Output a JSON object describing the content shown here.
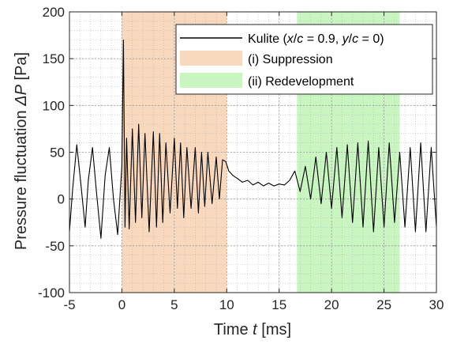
{
  "chart_data": {
    "type": "line",
    "xlabel_prefix": "Time ",
    "xlabel_var": "t",
    "xlabel_unit": " [ms]",
    "ylabel_prefix": "Pressure fluctuation ",
    "ylabel_var": "ΔP",
    "ylabel_unit": " [Pa]",
    "xlim": [
      -5,
      30
    ],
    "ylim": [
      -100,
      200
    ],
    "xticks": [
      -5,
      0,
      5,
      10,
      15,
      20,
      25,
      30
    ],
    "yticks": [
      -100,
      -50,
      0,
      50,
      100,
      150,
      200
    ],
    "grid": true,
    "minor_grid": true,
    "legend_placement": "top-right",
    "regions": [
      {
        "label": "(i) Suppression",
        "x0": 0.0,
        "x1": 10.0,
        "color": "#f8d9bd"
      },
      {
        "label": "(ii) Redevelopment",
        "x0": 16.7,
        "x1": 26.5,
        "color": "#c8f5c0"
      }
    ],
    "series": [
      {
        "name": "Kulite (x/c = 0.9, y/c = 0)",
        "name_parts": [
          "Kulite (",
          "x",
          "/",
          "c",
          " = 0.9, ",
          "y",
          "/",
          "c",
          " = 0)"
        ],
        "color": "#000000",
        "x": [
          -5.0,
          -4.7,
          -4.3,
          -3.9,
          -3.5,
          -3.2,
          -2.8,
          -2.4,
          -2.0,
          -1.6,
          -1.2,
          -0.8,
          -0.4,
          0.0,
          0.15,
          0.3,
          0.45,
          0.7,
          1.0,
          1.3,
          1.6,
          1.9,
          2.2,
          2.6,
          3.0,
          3.3,
          3.6,
          3.9,
          4.2,
          4.6,
          5.0,
          5.3,
          5.6,
          5.9,
          6.2,
          6.6,
          7.0,
          7.3,
          7.6,
          7.9,
          8.2,
          8.6,
          9.0,
          9.3,
          9.6,
          9.9,
          10.2,
          10.6,
          11.0,
          11.5,
          12.0,
          12.5,
          13.0,
          13.5,
          14.0,
          14.5,
          15.0,
          15.5,
          16.0,
          16.5,
          17.0,
          17.5,
          18.0,
          18.5,
          19.0,
          19.5,
          20.0,
          20.5,
          21.0,
          21.5,
          22.0,
          22.5,
          23.0,
          23.5,
          24.0,
          24.5,
          25.0,
          25.5,
          26.0,
          26.5,
          27.0,
          27.5,
          28.0,
          28.5,
          29.0,
          29.5,
          30.0
        ],
        "y": [
          -35,
          10,
          58,
          15,
          -30,
          20,
          55,
          5,
          -42,
          25,
          55,
          0,
          -38,
          35,
          170,
          -30,
          65,
          -32,
          75,
          -25,
          80,
          -20,
          70,
          -35,
          72,
          -30,
          70,
          -25,
          60,
          -15,
          65,
          -10,
          60,
          -20,
          55,
          -10,
          55,
          -15,
          50,
          -8,
          50,
          -5,
          45,
          0,
          42,
          40,
          30,
          25,
          22,
          18,
          20,
          15,
          18,
          14,
          17,
          14,
          16,
          15,
          20,
          30,
          8,
          35,
          0,
          45,
          -5,
          50,
          -10,
          55,
          -20,
          58,
          -25,
          60,
          -30,
          62,
          -35,
          55,
          -30,
          60,
          -25,
          50,
          -30,
          55,
          -35,
          60,
          -35,
          55,
          -30
        ]
      }
    ]
  }
}
